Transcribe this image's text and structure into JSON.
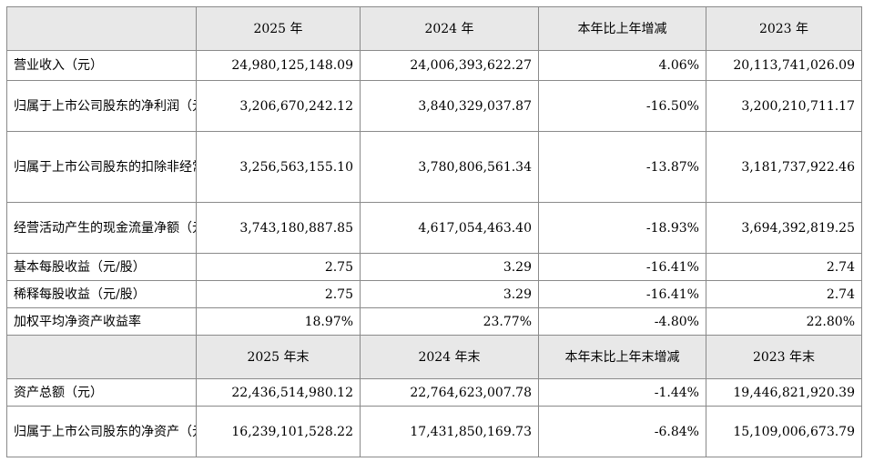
{
  "headers1": [
    "",
    "2025 年",
    "2024 年",
    "本年比上年增减",
    "2023 年"
  ],
  "rows1": [
    {
      "label": "营业收入（元）",
      "v2025": "24,980,125,148.09",
      "v2024": "24,006,393,622.27",
      "change": "4.06%",
      "v2023": "20,113,741,026.09"
    },
    {
      "label": "归属于上市公司股东的净利润（元）",
      "v2025": "3,206,670,242.12",
      "v2024": "3,840,329,037.87",
      "change": "-16.50%",
      "v2023": "3,200,210,711.17"
    },
    {
      "label": "归属于上市公司股东的扣除非经常性损益的净利润（元）",
      "v2025": "3,256,563,155.10",
      "v2024": "3,780,806,561.34",
      "change": "-13.87%",
      "v2023": "3,181,737,922.46"
    },
    {
      "label": "经营活动产生的现金流量净额（元）",
      "v2025": "3,743,180,887.85",
      "v2024": "4,617,054,463.40",
      "change": "-18.93%",
      "v2023": "3,694,392,819.25"
    },
    {
      "label": "基本每股收益（元/股）",
      "v2025": "2.75",
      "v2024": "3.29",
      "change": "-16.41%",
      "v2023": "2.74"
    },
    {
      "label": "稀释每股收益（元/股）",
      "v2025": "2.75",
      "v2024": "3.29",
      "change": "-16.41%",
      "v2023": "2.74"
    },
    {
      "label": "加权平均净资产收益率",
      "v2025": "18.97%",
      "v2024": "23.77%",
      "change": "-4.80%",
      "v2023": "22.80%"
    }
  ],
  "headers2": [
    "",
    "2025 年末",
    "2024 年末",
    "本年末比上年末增减",
    "2023 年末"
  ],
  "rows2": [
    {
      "label": "资产总额（元）",
      "v2025": "22,436,514,980.12",
      "v2024": "22,764,623,007.78",
      "change": "-1.44%",
      "v2023": "19,446,821,920.39"
    },
    {
      "label": "归属于上市公司股东的净资产（元）",
      "v2025": "16,239,101,528.22",
      "v2024": "17,431,850,169.73",
      "change": "-6.84%",
      "v2023": "15,109,006,673.79"
    }
  ]
}
